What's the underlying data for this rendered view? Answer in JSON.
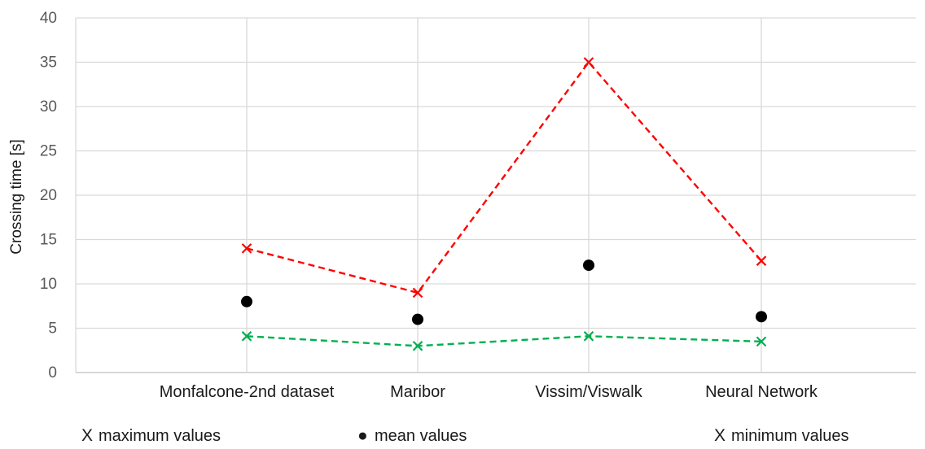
{
  "chart_data": {
    "type": "line",
    "title": "",
    "xlabel": "",
    "ylabel": "Crossing time [s]",
    "categories": [
      "Monfalcone-2nd dataset",
      "Maribor",
      "Vissim/Viswalk",
      "Neural Network"
    ],
    "ylim": [
      0,
      40
    ],
    "yticks": [
      0,
      5,
      10,
      15,
      20,
      25,
      30,
      35,
      40
    ],
    "grid": true,
    "legend_position": "bottom",
    "series": [
      {
        "name": "maximum values",
        "marker": "x",
        "line": "dashed",
        "color": "#ff0000",
        "values": [
          14,
          9,
          35,
          12.6
        ]
      },
      {
        "name": "mean values",
        "marker": "circle",
        "line": "none",
        "color": "#000000",
        "values": [
          8,
          6,
          12.1,
          6.3
        ]
      },
      {
        "name": "minimum values",
        "marker": "x",
        "line": "dashed",
        "color": "#00b050",
        "values": [
          4.1,
          3,
          4.1,
          3.5
        ]
      }
    ],
    "legend": {
      "items": [
        {
          "symbol": "X",
          "label": "maximum values",
          "color": "#ff0000"
        },
        {
          "symbol": "●",
          "label": "mean values",
          "color": "#000000"
        },
        {
          "symbol": "X",
          "label": "minimum values",
          "color": "#00b050"
        }
      ]
    }
  }
}
